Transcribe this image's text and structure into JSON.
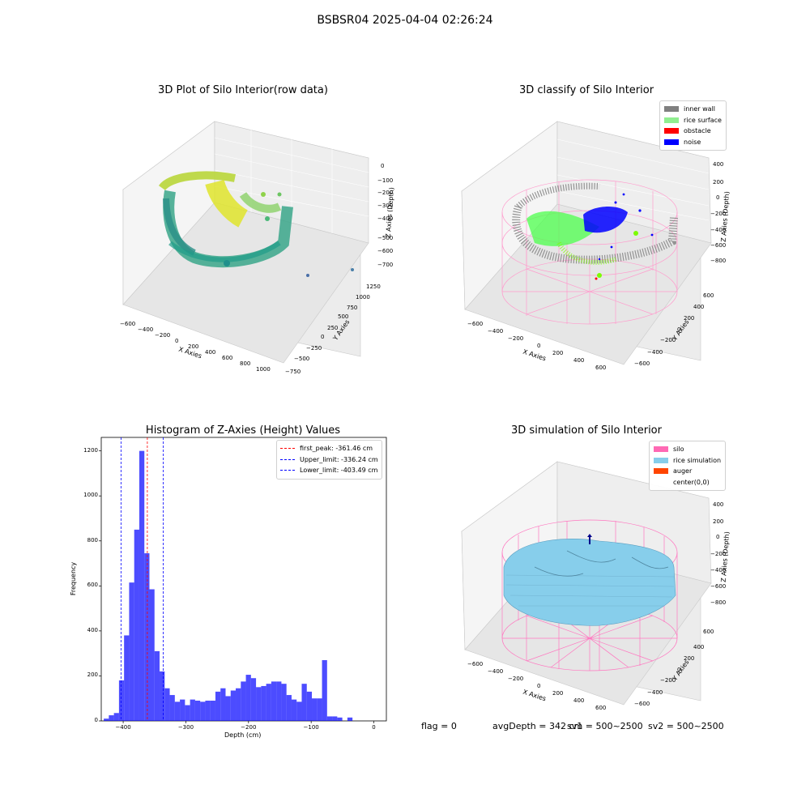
{
  "title": "BSBSR04 2025-04-04 02:26:24",
  "chart_data": [
    {
      "type": "scatter",
      "title": "3D Plot of Silo Interior(row data)",
      "xlabel": "X Axies",
      "ylabel": "Y Axies",
      "zlabel": "Z Axies (Depth)",
      "x_ticks": [
        "−600",
        "−400",
        "−200",
        "0",
        "200",
        "400",
        "600",
        "800",
        "1000"
      ],
      "y_ticks": [
        "−750",
        "−500",
        "−250",
        "0",
        "250",
        "500",
        "750",
        "1000",
        "1250"
      ],
      "z_ticks": [
        "0",
        "−100",
        "−200",
        "−300",
        "−400",
        "−500",
        "−600",
        "−700"
      ],
      "colormap": "viridis"
    },
    {
      "type": "scatter",
      "title": "3D classify of Silo Interior",
      "xlabel": "X Axies",
      "ylabel": "Y Axies",
      "zlabel": "Z Axies (Depth)",
      "x_ticks": [
        "−600",
        "−400",
        "−200",
        "0",
        "200",
        "400",
        "600"
      ],
      "y_ticks": [
        "−600",
        "−400",
        "−200",
        "0",
        "200",
        "400",
        "600"
      ],
      "z_ticks": [
        "400",
        "200",
        "0",
        "−200",
        "−400",
        "−600",
        "−800"
      ],
      "legend": [
        {
          "label": "inner wall",
          "color": "#808080"
        },
        {
          "label": "rice surface",
          "color": "#90ee90"
        },
        {
          "label": "obstacle",
          "color": "#ff0000"
        },
        {
          "label": "noise",
          "color": "#0000ff"
        }
      ]
    },
    {
      "type": "bar",
      "title": "Histogram of Z-Axies (Height) Values",
      "xlabel": "Depth (cm)",
      "ylabel": "Frequency",
      "xlim": [
        -435,
        20
      ],
      "ylim": [
        0,
        1260
      ],
      "x_ticks": [
        -400,
        -300,
        -200,
        -100,
        0
      ],
      "x_tick_labels": [
        "−400",
        "−300",
        "−200",
        "−100",
        "0"
      ],
      "y_ticks": [
        0,
        200,
        400,
        600,
        800,
        1000,
        1200
      ],
      "bin_start": -431,
      "bin_width": 8.1,
      "values": [
        10,
        25,
        35,
        180,
        380,
        615,
        850,
        1200,
        745,
        585,
        310,
        220,
        145,
        115,
        85,
        95,
        70,
        95,
        90,
        85,
        90,
        90,
        130,
        145,
        110,
        135,
        145,
        175,
        205,
        190,
        150,
        155,
        165,
        175,
        175,
        165,
        115,
        95,
        85,
        165,
        130,
        100,
        100,
        270,
        20,
        20,
        15,
        0,
        15
      ],
      "bar_color": "#0000ff",
      "lines": [
        {
          "label": "first_peak: -361.46 cm",
          "x": -361.46,
          "color": "#ff0000"
        },
        {
          "label": "Upper_limit: -336.24 cm",
          "x": -336.24,
          "color": "#0000ff"
        },
        {
          "label": "Lower_limit: -403.49 cm",
          "x": -403.49,
          "color": "#0000ff"
        }
      ]
    },
    {
      "type": "area",
      "title": "3D simulation of Silo Interior",
      "xlabel": "X Axies",
      "ylabel": "Y Axies",
      "zlabel": "Z Axies (Depth)",
      "x_ticks": [
        "−600",
        "−400",
        "−200",
        "0",
        "200",
        "400",
        "600"
      ],
      "y_ticks": [
        "−600",
        "−400",
        "−200",
        "0",
        "200",
        "400",
        "600"
      ],
      "z_ticks": [
        "400",
        "200",
        "0",
        "−200",
        "−400",
        "−600",
        "−800"
      ],
      "legend": [
        {
          "label": "silo",
          "color": "#ff69b4"
        },
        {
          "label": "rice simulation",
          "color": "#87ceeb"
        },
        {
          "label": "auger",
          "color": "#ff4500"
        },
        {
          "label": "center(0,0)",
          "color": "#ffffff"
        }
      ]
    }
  ],
  "footer": {
    "flag": "flag = 0",
    "avg_depth": "avgDepth = 342 cm",
    "sv1": "sv1 = 500~2500",
    "sv2": "sv2 = 500~2500"
  }
}
